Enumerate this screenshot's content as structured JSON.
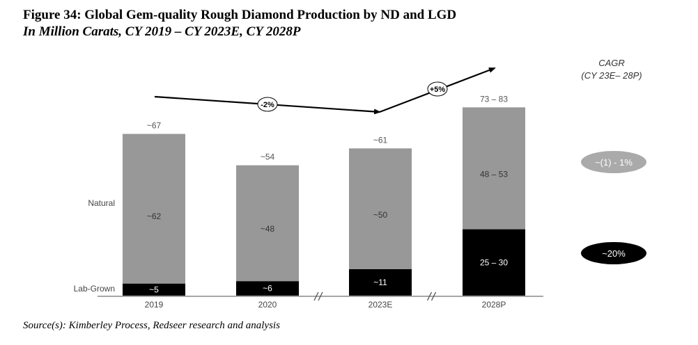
{
  "header": {
    "title": "Figure 34: Global Gem-quality Rough Diamond Production by ND and LGD",
    "subtitle": "In Million Carats, CY 2019 – CY 2023E, CY 2028P"
  },
  "footer": {
    "source": "Source(s): Kimberley Process, Redseer research and analysis"
  },
  "chart_data": {
    "type": "bar",
    "stacked": true,
    "title": "Figure 34: Global Gem-quality Rough Diamond Production by ND and LGD",
    "subtitle": "In Million Carats, CY 2019 – CY 2023E, CY 2028P",
    "xlabel": "",
    "ylabel": "",
    "unit": "Million Carats",
    "categories": [
      "2019",
      "2020",
      "2023E",
      "2028P"
    ],
    "axis_breaks_after": [
      "2020",
      "2023E"
    ],
    "series": [
      {
        "name": "Lab-Grown",
        "color": "#000000",
        "label_color": "#ffffff",
        "values": [
          5,
          6,
          11,
          27.5
        ],
        "labels": [
          "~5",
          "~6",
          "~11",
          "25 – 30"
        ]
      },
      {
        "name": "Natural",
        "color": "#989898",
        "label_color": "#333333",
        "values": [
          62,
          48,
          50,
          50.5
        ],
        "labels": [
          "~62",
          "~48",
          "~50",
          "48 – 53"
        ]
      }
    ],
    "totals": {
      "values": [
        67,
        54,
        61,
        78
      ],
      "labels": [
        "~67",
        "~54",
        "~61",
        "73 – 83"
      ]
    },
    "trend_annotations": [
      {
        "from": "2019",
        "to": "2023E",
        "label": "-2%"
      },
      {
        "from": "2023E",
        "to": "2028P",
        "label": "+5%"
      }
    ],
    "cagr": {
      "title": "CAGR",
      "period": "(CY 23E– 28P)",
      "items": [
        {
          "series": "Natural",
          "label": "~(1) - 1%",
          "color": "#aaaaaa"
        },
        {
          "series": "Lab-Grown",
          "label": "~20%",
          "color": "#000000"
        }
      ]
    },
    "ylim": [
      0,
      85
    ],
    "grid": false,
    "legend": "left-inline"
  }
}
